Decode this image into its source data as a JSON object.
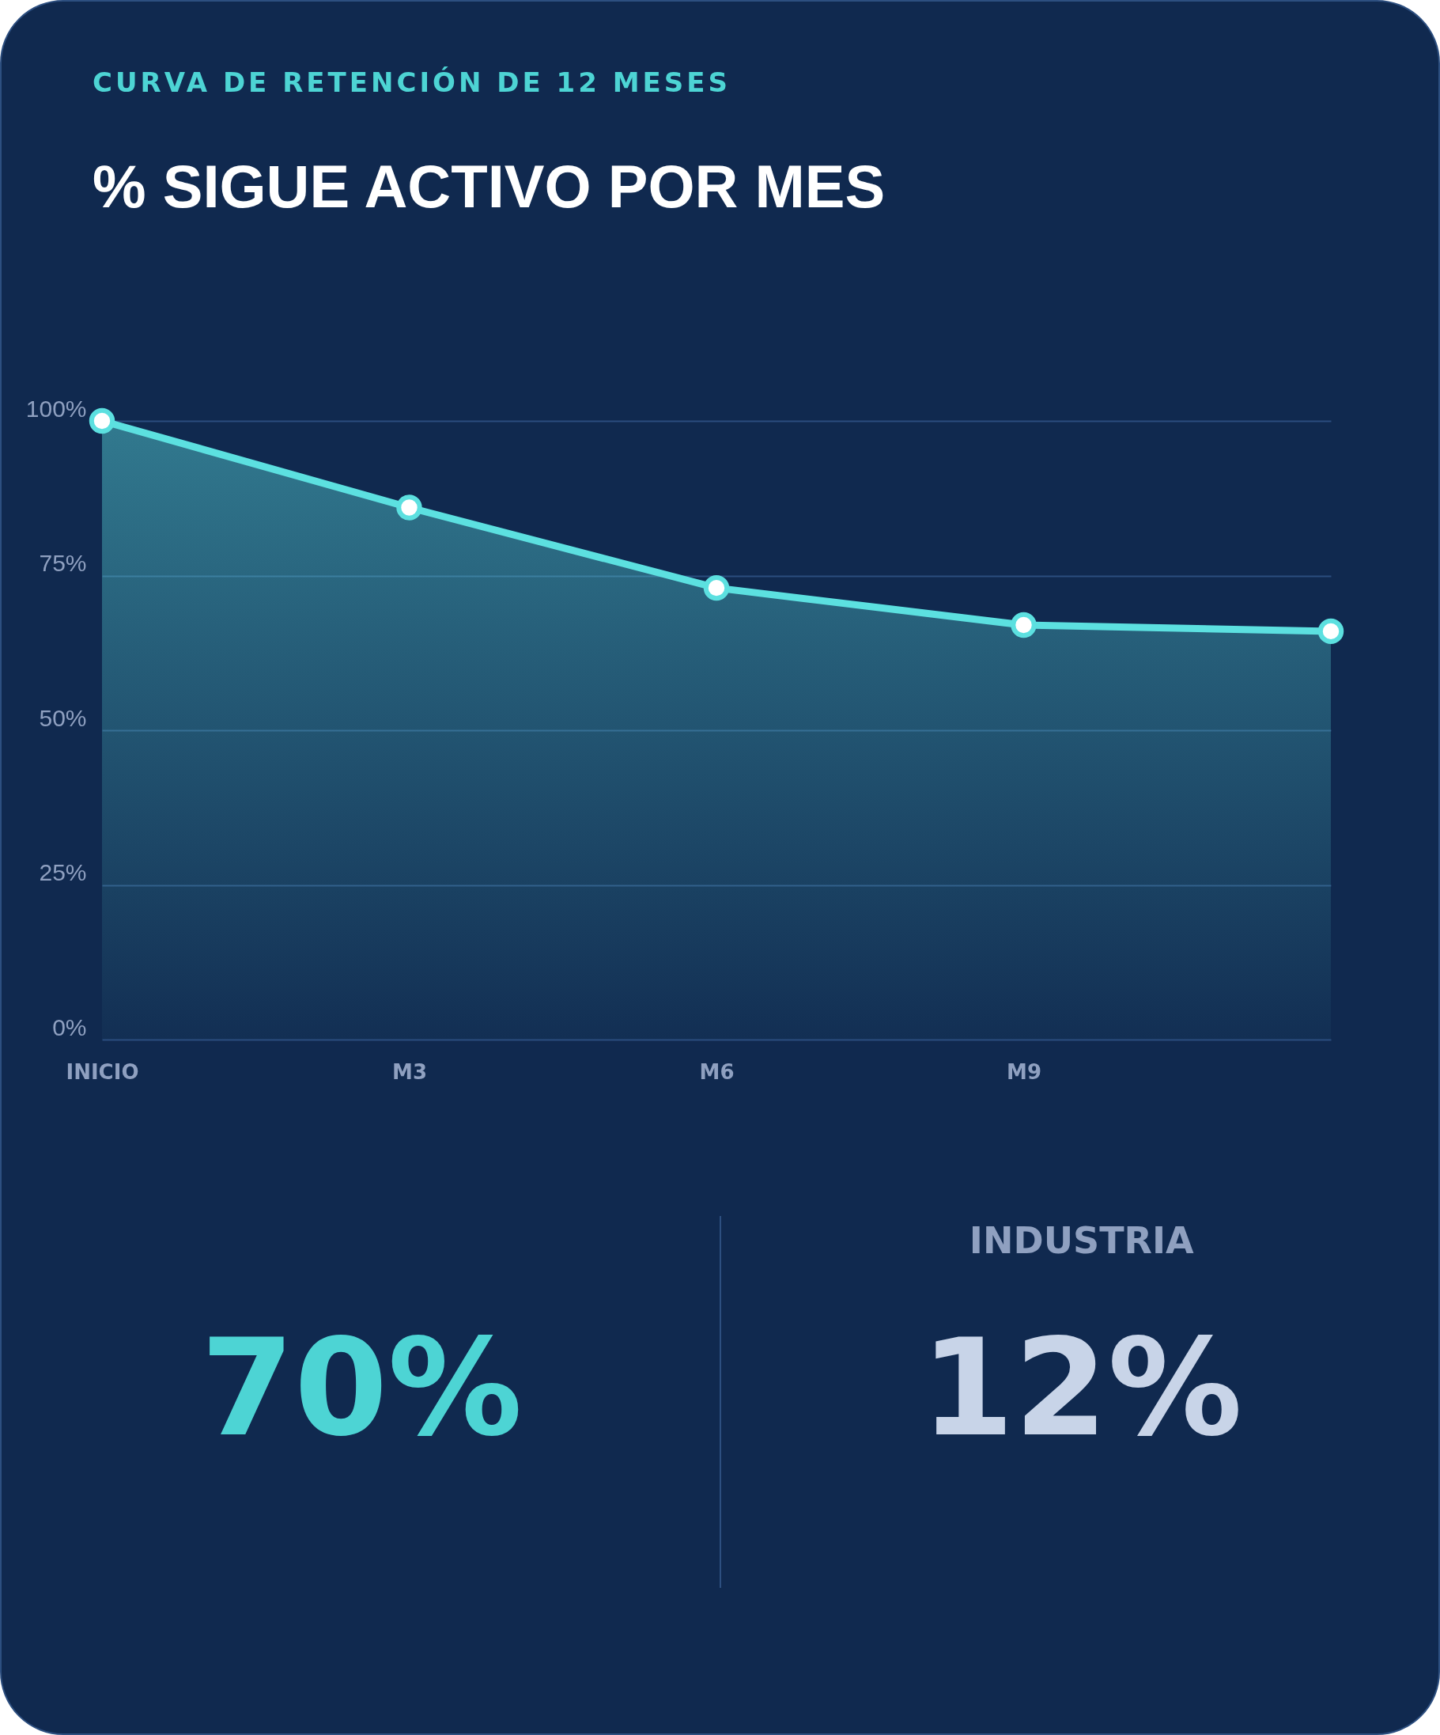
{
  "chart_data": [
    {
      "type": "area",
      "subtitle": "CURVA DE RETENCIÓN DE 12 MESES",
      "title": "% SIGUE ACTIVO POR MES",
      "categories": [
        "INICIO",
        "M3",
        "M6",
        "M9",
        null
      ],
      "series": [
        {
          "color": "#5ce0e0",
          "values": [
            100,
            86,
            73,
            67,
            66
          ]
        }
      ],
      "ylim": [
        0,
        100
      ],
      "yticks": [
        {
          "value": 0,
          "label": "0%"
        },
        {
          "value": 25,
          "label": "25%"
        },
        {
          "value": 50,
          "label": "50%"
        },
        {
          "value": 75,
          "label": "75%"
        },
        {
          "value": 100,
          "label": "100%"
        }
      ],
      "grid": "y",
      "marker": "circle",
      "line_style": "solid"
    },
    {
      "type": "other",
      "categories": [
        null,
        "INDUSTRIA"
      ],
      "value_labels": [
        "70%",
        "12%"
      ],
      "colors": [
        "#4dd4d4",
        "#c8d4e8"
      ]
    }
  ]
}
